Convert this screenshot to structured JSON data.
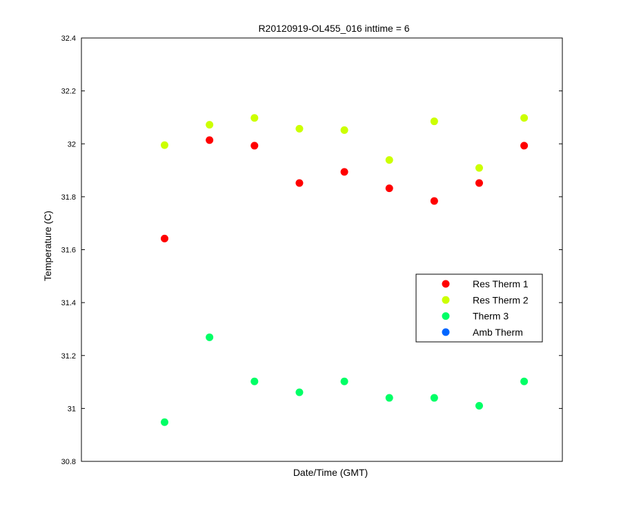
{
  "chart_data": {
    "type": "scatter",
    "title": "R20120919-OL455_016 inttime = 6",
    "xlabel": "Date/Time (GMT)",
    "ylabel": "Temperature (C)",
    "ylim": [
      30.8,
      32.4
    ],
    "yticks": [
      "30.8",
      "31",
      "31.2",
      "31.4",
      "31.6",
      "31.8",
      "32",
      "32.2",
      "32.4"
    ],
    "xticks": [],
    "grid": false,
    "legend_position": "right",
    "x": [
      1,
      2,
      3,
      4,
      5,
      6,
      7,
      8,
      9
    ],
    "xlim": [
      -0.85,
      9.85
    ],
    "series": [
      {
        "name": "Res Therm 1",
        "color": "#ff0000",
        "values": [
          31.642,
          32.014,
          31.993,
          31.852,
          31.894,
          31.832,
          31.784,
          31.852,
          31.993
        ]
      },
      {
        "name": "Res Therm 2",
        "color": "#ccff00",
        "values": [
          31.995,
          32.072,
          32.098,
          32.057,
          32.052,
          31.939,
          32.085,
          31.909,
          32.098
        ]
      },
      {
        "name": "Therm 3",
        "color": "#00ff66",
        "values": [
          30.948,
          31.269,
          31.102,
          31.061,
          31.102,
          31.04,
          31.04,
          31.01,
          31.102
        ]
      },
      {
        "name": "Amb Therm",
        "color": "#0066ff",
        "values": []
      }
    ]
  }
}
